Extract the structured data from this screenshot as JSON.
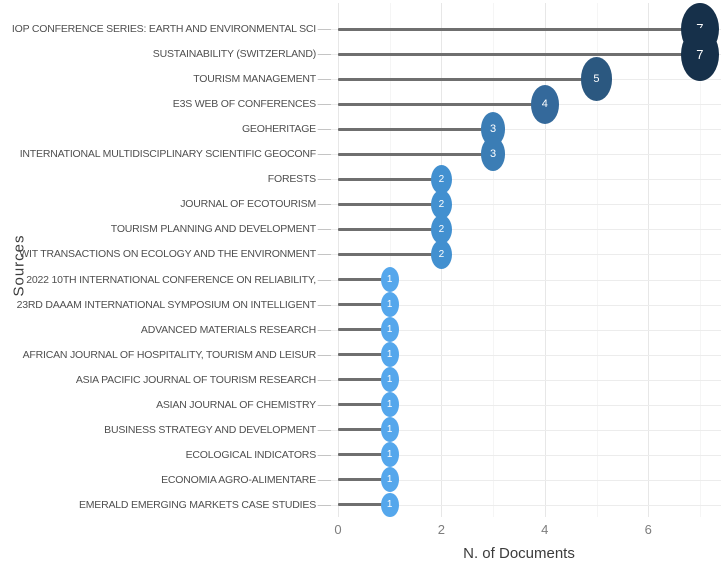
{
  "chart_data": {
    "type": "lollipop",
    "orientation": "horizontal",
    "title": "",
    "xlabel": "N. of Documents",
    "ylabel": "Sources",
    "x_ticks": [
      0,
      2,
      4,
      6
    ],
    "xlim": [
      -0.4,
      7.4
    ],
    "grid": true,
    "legend_position": "none",
    "categories": [
      "IOP CONFERENCE SERIES: EARTH AND ENVIRONMENTAL SCI",
      "SUSTAINABILITY (SWITZERLAND)",
      "TOURISM MANAGEMENT",
      "E3S WEB OF CONFERENCES",
      "GEOHERITAGE",
      "INTERNATIONAL MULTIDISCIPLINARY SCIENTIFIC GEOCONF",
      "FORESTS",
      "JOURNAL OF ECOTOURISM",
      "TOURISM PLANNING AND DEVELOPMENT",
      "WIT TRANSACTIONS ON ECOLOGY AND THE ENVIRONMENT",
      "2022 10TH INTERNATIONAL CONFERENCE ON RELIABILITY,",
      "23RD DAAAM INTERNATIONAL SYMPOSIUM ON INTELLIGENT",
      "ADVANCED MATERIALS RESEARCH",
      "AFRICAN JOURNAL OF HOSPITALITY, TOURISM AND LEISUR",
      "ASIA PACIFIC JOURNAL OF TOURISM RESEARCH",
      "ASIAN JOURNAL OF CHEMISTRY",
      "BUSINESS STRATEGY AND DEVELOPMENT",
      "ECOLOGICAL INDICATORS",
      "ECONOMIA AGRO-ALIMENTARE",
      "EMERALD EMERGING MARKETS CASE STUDIES"
    ],
    "values": [
      7,
      7,
      5,
      4,
      3,
      3,
      2,
      2,
      2,
      2,
      1,
      1,
      1,
      1,
      1,
      1,
      1,
      1,
      1,
      1
    ],
    "dot_colors_by_value": {
      "1": "#55A7EC",
      "2": "#4290D0",
      "3": "#3B7DB5",
      "4": "#34699B",
      "5": "#2B5880",
      "7": "#16304A"
    },
    "stem_color": "#6F6F6F",
    "label_color": "#4F4F4F",
    "gridline_color": "#ECECEC",
    "value_text_color": "#FFFFFF"
  }
}
